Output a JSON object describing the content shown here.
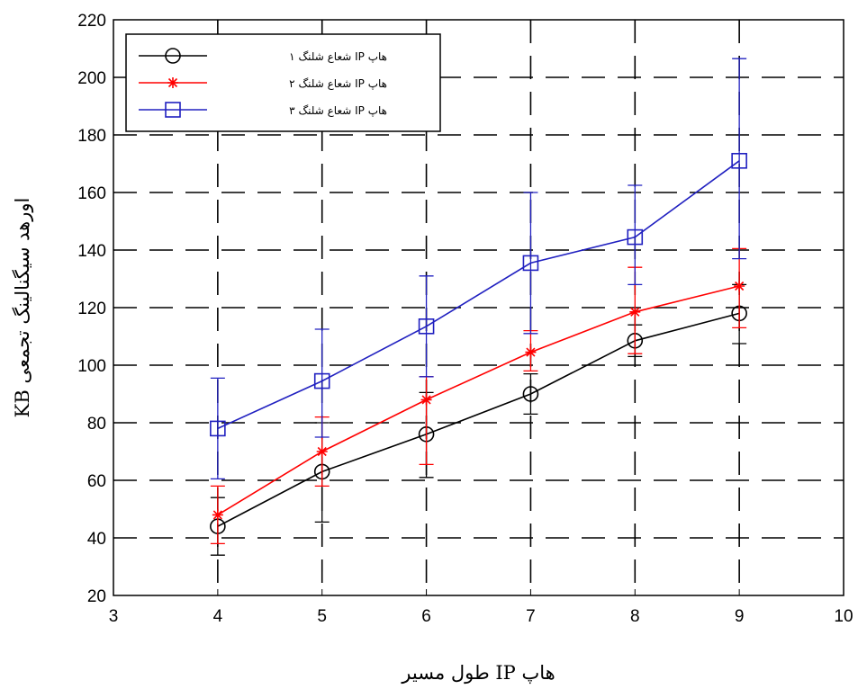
{
  "chart_data": {
    "type": "line",
    "xlabel": "طول مسیر  IP هاپ",
    "ylabel": "KB اورهد سیگنالینگ تجمعی",
    "xlim": [
      3,
      10
    ],
    "ylim": [
      20,
      220
    ],
    "xticks": [
      3,
      4,
      5,
      6,
      7,
      8,
      9,
      10
    ],
    "yticks": [
      20,
      40,
      60,
      80,
      100,
      120,
      140,
      160,
      180,
      200,
      220
    ],
    "grid": true,
    "legend_position": "top-left",
    "series": [
      {
        "name": "شعاع شلنگ ۱ IP هاپ",
        "color": "#000000",
        "marker": "circle",
        "x": [
          4,
          5,
          6,
          7,
          8,
          9
        ],
        "y": [
          44,
          63,
          76,
          90,
          108.5,
          118
        ],
        "err_low": [
          34,
          45.5,
          61,
          83,
          103,
          107.5
        ],
        "err_high": [
          54,
          80,
          90.5,
          97,
          114,
          128
        ]
      },
      {
        "name": "شعاع شلنگ ۲ IP هاپ",
        "color": "#ff0000",
        "marker": "star",
        "x": [
          4,
          5,
          6,
          7,
          8,
          9
        ],
        "y": [
          48,
          70,
          88,
          104.5,
          118.5,
          127.5
        ],
        "err_low": [
          38,
          58,
          65.5,
          98,
          104,
          113
        ],
        "err_high": [
          58,
          82,
          96,
          112,
          134,
          140.5
        ]
      },
      {
        "name": "شعاع شلنگ ۳ IP هاپ",
        "color": "#2020c0",
        "marker": "square",
        "x": [
          4,
          5,
          6,
          7,
          8,
          9
        ],
        "y": [
          78,
          94.5,
          113.5,
          135.5,
          144.5,
          171
        ],
        "err_low": [
          60.5,
          75,
          96,
          111,
          128,
          137
        ],
        "err_high": [
          95.5,
          112.5,
          131,
          160,
          162.5,
          206.5
        ]
      }
    ]
  }
}
